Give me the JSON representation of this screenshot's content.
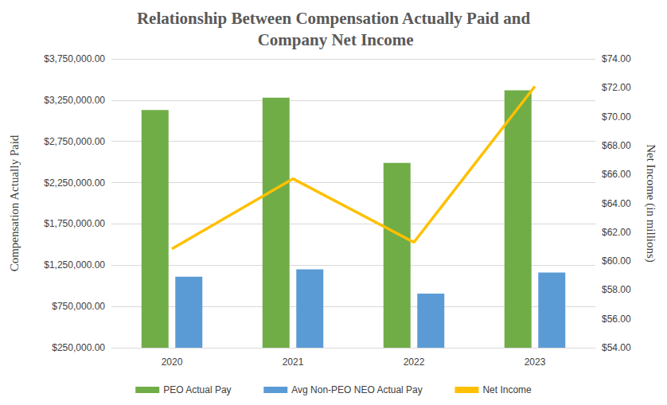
{
  "chart_data": {
    "type": "bar",
    "title": "Relationship Between Compensation Actually Paid and Company Net Income",
    "ylabel": "Compensation Actually Paid",
    "y2label": "Net Income (in millions)",
    "categories": [
      "2020",
      "2021",
      "2022",
      "2023"
    ],
    "series": [
      {
        "name": "PEO Actual Pay",
        "type": "bar",
        "color": "#70ad47",
        "values": [
          3130000,
          3280000,
          2490000,
          3370000
        ]
      },
      {
        "name": "Avg Non-PEO NEO Actual Pay",
        "type": "bar",
        "color": "#5b9bd5",
        "values": [
          1110000,
          1200000,
          905000,
          1160000
        ]
      },
      {
        "name": "Net Income",
        "type": "line",
        "axis": "y2",
        "color": "#ffc000",
        "values": [
          60.85,
          65.7,
          61.3,
          72.1
        ]
      }
    ],
    "ylim": [
      250000,
      3750000
    ],
    "yticks": [
      {
        "value": 250000,
        "label": "$250,000.00"
      },
      {
        "value": 750000,
        "label": "$750,000.00"
      },
      {
        "value": 1250000,
        "label": "$1,250,000.00"
      },
      {
        "value": 1750000,
        "label": "$1,750,000.00"
      },
      {
        "value": 2250000,
        "label": "$2,250,000.00"
      },
      {
        "value": 2750000,
        "label": "$2,750,000.00"
      },
      {
        "value": 3250000,
        "label": "$3,250,000.00"
      },
      {
        "value": 3750000,
        "label": "$3,750,000.00"
      }
    ],
    "y2lim": [
      54,
      74
    ],
    "y2ticks": [
      {
        "value": 54,
        "label": "$54.00"
      },
      {
        "value": 56,
        "label": "$56.00"
      },
      {
        "value": 58,
        "label": "$58.00"
      },
      {
        "value": 60,
        "label": "$60.00"
      },
      {
        "value": 62,
        "label": "$62.00"
      },
      {
        "value": 64,
        "label": "$64.00"
      },
      {
        "value": 66,
        "label": "$66.00"
      },
      {
        "value": 68,
        "label": "$68.00"
      },
      {
        "value": 70,
        "label": "$70.00"
      },
      {
        "value": 72,
        "label": "$72.00"
      },
      {
        "value": 74,
        "label": "$74.00"
      }
    ],
    "grid": true,
    "legend": "bottom"
  }
}
